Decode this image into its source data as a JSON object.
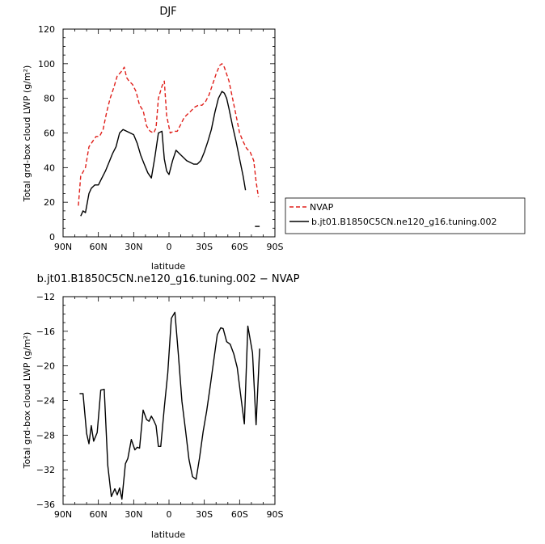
{
  "chart_data": [
    {
      "type": "line",
      "title": "DJF",
      "xlabel": "latitude",
      "ylabel": "Total grd-box cloud LWP (g/m²)",
      "xlim": [
        -90,
        90
      ],
      "ylim": [
        0,
        120
      ],
      "xticks": [
        {
          "value": -90,
          "label": "90N"
        },
        {
          "value": -60,
          "label": "60N"
        },
        {
          "value": -30,
          "label": "30N"
        },
        {
          "value": 0,
          "label": "0"
        },
        {
          "value": 30,
          "label": "30S"
        },
        {
          "value": 60,
          "label": "60S"
        },
        {
          "value": 90,
          "label": "90S"
        }
      ],
      "yticks": [
        0,
        20,
        40,
        60,
        80,
        100,
        120
      ],
      "legend": "right-outside",
      "series": [
        {
          "name": "NVAP",
          "color": "#e0201b",
          "dash": true,
          "x": [
            -77,
            -75,
            -71,
            -68,
            -65,
            -62,
            -59,
            -56,
            -53,
            -50,
            -47,
            -44,
            -41,
            -38,
            -36,
            -34,
            -31,
            -28,
            -25,
            -22,
            -19,
            -16,
            -13,
            -11,
            -9,
            -6,
            -4,
            -2,
            1,
            4,
            7,
            10,
            13,
            16,
            19,
            22,
            25,
            28,
            31,
            34,
            37,
            40,
            43,
            45,
            47,
            49,
            51,
            54,
            57,
            60,
            63,
            66,
            69,
            72,
            74,
            76
          ],
          "y": [
            18,
            35,
            40,
            52,
            55,
            58,
            58,
            62,
            72,
            80,
            86,
            93,
            95,
            98,
            92,
            90,
            88,
            84,
            76,
            73,
            64,
            61,
            60,
            63,
            80,
            87,
            90,
            70,
            60,
            61,
            61,
            65,
            69,
            71,
            73,
            75,
            76,
            76,
            78,
            82,
            88,
            94,
            99,
            100,
            98,
            94,
            90,
            80,
            70,
            60,
            55,
            51,
            49,
            44,
            32,
            23
          ]
        },
        {
          "name": "b.jt01.B1850C5CN.ne120_g16.tuning.002",
          "color": "#000000",
          "dash": false,
          "x": [
            -75,
            -73,
            -71,
            -68,
            -66,
            -63,
            -60,
            -57,
            -54,
            -51,
            -48,
            -45,
            -42,
            -39,
            -36,
            -33,
            -30,
            -27,
            -24,
            -21,
            -18,
            -15,
            -12,
            -9,
            -6,
            -4,
            -2,
            0,
            3,
            6,
            9,
            12,
            15,
            18,
            21,
            24,
            27,
            30,
            33,
            36,
            39,
            42,
            45,
            47,
            49,
            51,
            54,
            57,
            60,
            63,
            65
          ],
          "y": [
            12,
            15,
            14,
            25,
            28,
            30,
            30,
            34,
            38,
            43,
            48,
            52,
            60,
            62,
            61,
            60,
            59,
            54,
            47,
            42,
            37,
            34,
            46,
            60,
            61,
            45,
            38,
            36,
            44,
            50,
            48,
            46,
            44,
            43,
            42,
            42,
            44,
            49,
            55,
            62,
            72,
            80,
            84,
            83,
            80,
            74,
            64,
            55,
            45,
            35,
            27
          ]
        },
        {
          "name": "",
          "color": "#000000",
          "dash": false,
          "x": [
            73,
            77
          ],
          "y": [
            6,
            6
          ]
        }
      ]
    },
    {
      "type": "line",
      "title": "b.jt01.B1850C5CN.ne120_g16.tuning.002 − NVAP",
      "xlabel": "latitude",
      "ylabel": "Total grd-box cloud LWP (g/m²)",
      "xlim": [
        -90,
        90
      ],
      "ylim": [
        -36,
        -12
      ],
      "xticks": [
        {
          "value": -90,
          "label": "90N"
        },
        {
          "value": -60,
          "label": "60N"
        },
        {
          "value": -30,
          "label": "30N"
        },
        {
          "value": 0,
          "label": "0"
        },
        {
          "value": 30,
          "label": "30S"
        },
        {
          "value": 60,
          "label": "60S"
        },
        {
          "value": 90,
          "label": "90S"
        }
      ],
      "yticks": [
        -36,
        -32,
        -28,
        -24,
        -20,
        -16,
        -12
      ],
      "series": [
        {
          "name": "",
          "color": "#000000",
          "dash": false,
          "x": [
            -76,
            -73,
            -70,
            -68,
            -66,
            -64,
            -61,
            -58,
            -55,
            -52,
            -49,
            -46,
            -44,
            -42,
            -40,
            -37,
            -35,
            -32,
            -29,
            -27,
            -25,
            -22,
            -19,
            -17,
            -15,
            -13,
            -11,
            -9,
            -7,
            -4,
            -1,
            2,
            5,
            8,
            11,
            14,
            17,
            20,
            23,
            26,
            29,
            32,
            35,
            38,
            41,
            44,
            46,
            49,
            52,
            55,
            58,
            61,
            64,
            67,
            71,
            74,
            77
          ],
          "y": [
            -23.2,
            -23.2,
            -27.8,
            -29,
            -26.9,
            -28.7,
            -27.7,
            -22.8,
            -22.7,
            -31.5,
            -35.1,
            -34.2,
            -34.9,
            -34.1,
            -35.4,
            -31.3,
            -30.7,
            -28.5,
            -29.7,
            -29.4,
            -29.5,
            -25.1,
            -26.2,
            -26.4,
            -25.8,
            -26.3,
            -26.9,
            -29.3,
            -29.3,
            -24.8,
            -20.8,
            -14.5,
            -13.8,
            -18.7,
            -24.1,
            -27.4,
            -30.8,
            -32.8,
            -33.1,
            -30.6,
            -27.6,
            -25.2,
            -22.4,
            -19.4,
            -16.4,
            -15.6,
            -15.7,
            -17.2,
            -17.5,
            -18.6,
            -20.2,
            -23.5,
            -26.7,
            -15.4,
            -18.5,
            -26.8,
            -18.0
          ]
        }
      ]
    }
  ]
}
